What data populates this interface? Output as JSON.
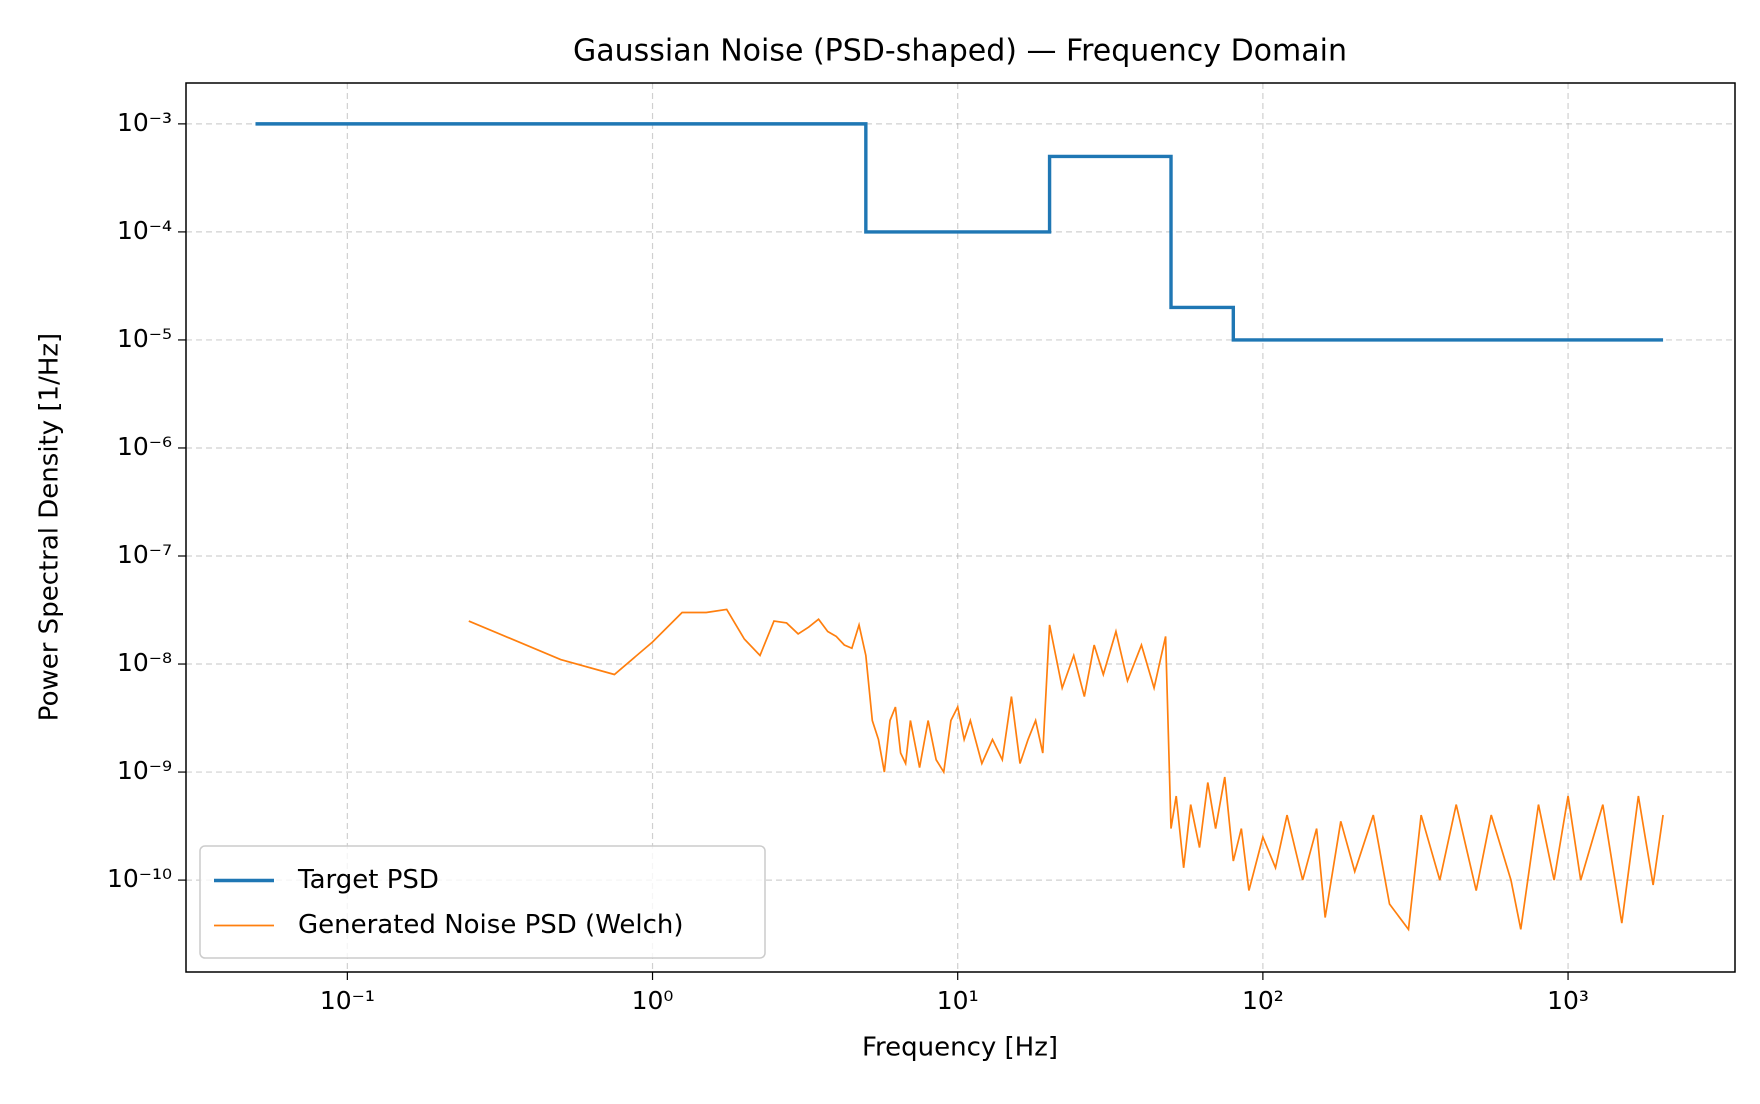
{
  "chart_data": {
    "type": "line",
    "title": "Gaussian Noise (PSD-shaped) — Frequency Domain",
    "x_label": "Frequency [Hz]",
    "y_label": "Power Spectral Density [1/Hz]",
    "xscale": "log",
    "yscale": "log",
    "grid": true,
    "legend": "lower left",
    "xlim": [
      0.0296,
      3524
    ],
    "ylim": [
      1.41e-11,
      0.00239
    ],
    "xticks": [
      {
        "value": 0.1,
        "label": "10⁻¹"
      },
      {
        "value": 1,
        "label": "10⁰"
      },
      {
        "value": 10,
        "label": "10¹"
      },
      {
        "value": 100,
        "label": "10²"
      },
      {
        "value": 1000,
        "label": "10³"
      }
    ],
    "yticks": [
      {
        "value": 1e-10,
        "label": "10⁻¹⁰"
      },
      {
        "value": 1e-09,
        "label": "10⁻⁹"
      },
      {
        "value": 1e-08,
        "label": "10⁻⁸"
      },
      {
        "value": 1e-07,
        "label": "10⁻⁷"
      },
      {
        "value": 1e-06,
        "label": "10⁻⁶"
      },
      {
        "value": 1e-05,
        "label": "10⁻⁵"
      },
      {
        "value": 0.0001,
        "label": "10⁻⁴"
      },
      {
        "value": 0.001,
        "label": "10⁻³"
      }
    ],
    "series": [
      {
        "name": "Target PSD",
        "color": "#1f77b4",
        "linewidth": 3.4,
        "x": [
          0.05,
          5,
          5,
          20,
          20,
          50,
          50,
          80,
          80,
          2048
        ],
        "values": [
          0.001,
          0.001,
          0.0001,
          0.0001,
          0.0005,
          0.0005,
          2e-05,
          2e-05,
          1e-05,
          1e-05
        ]
      },
      {
        "name": "Generated Noise PSD (Welch)",
        "color": "#ff7f0e",
        "linewidth": 1.7,
        "x": [
          0.25,
          0.5,
          0.75,
          1.0,
          1.25,
          1.5,
          1.75,
          2.0,
          2.25,
          2.5,
          2.75,
          3.0,
          3.25,
          3.5,
          3.75,
          4.0,
          4.25,
          4.5,
          4.75,
          5.0,
          5.25,
          5.5,
          5.75,
          6.0,
          6.25,
          6.5,
          6.75,
          7,
          7.5,
          8,
          8.5,
          9,
          9.5,
          10,
          10.5,
          11,
          12,
          13,
          14,
          15,
          16,
          17,
          18,
          19,
          20,
          22,
          24,
          26,
          28,
          30,
          33,
          36,
          40,
          44,
          48,
          50,
          52,
          55,
          58,
          62,
          66,
          70,
          75,
          80,
          85,
          90,
          100,
          110,
          120,
          135,
          150,
          160,
          180,
          200,
          230,
          260,
          300,
          330,
          380,
          430,
          500,
          560,
          650,
          700,
          800,
          900,
          1000,
          1100,
          1300,
          1500,
          1700,
          1900,
          2048
        ],
        "values": [
          2.5e-08,
          1.1e-08,
          8e-09,
          1.6e-08,
          3e-08,
          3e-08,
          3.2e-08,
          1.7e-08,
          1.2e-08,
          2.5e-08,
          2.4e-08,
          1.9e-08,
          2.2e-08,
          2.6e-08,
          2e-08,
          1.8e-08,
          1.5e-08,
          1.4e-08,
          2.3e-08,
          1.2e-08,
          3e-09,
          2e-09,
          1e-09,
          3e-09,
          4e-09,
          1.5e-09,
          1.2e-09,
          3e-09,
          1.1e-09,
          3e-09,
          1.3e-09,
          1e-09,
          3e-09,
          4e-09,
          2e-09,
          3e-09,
          1.2e-09,
          2e-09,
          1.3e-09,
          5e-09,
          1.2e-09,
          2e-09,
          3e-09,
          1.5e-09,
          2.3e-08,
          6e-09,
          1.2e-08,
          5e-09,
          1.5e-08,
          8e-09,
          2e-08,
          7e-09,
          1.5e-08,
          6e-09,
          1.8e-08,
          3e-10,
          6e-10,
          1.3e-10,
          5e-10,
          2e-10,
          8e-10,
          3e-10,
          9e-10,
          1.5e-10,
          3e-10,
          8e-11,
          2.5e-10,
          1.3e-10,
          4e-10,
          1e-10,
          3e-10,
          4.5e-11,
          3.5e-10,
          1.2e-10,
          4e-10,
          6e-11,
          3.5e-11,
          4e-10,
          1e-10,
          5e-10,
          8e-11,
          4e-10,
          1e-10,
          3.5e-11,
          5e-10,
          1e-10,
          6e-10,
          1e-10,
          5e-10,
          4e-11,
          6e-10,
          9e-11,
          4e-10
        ]
      }
    ]
  }
}
